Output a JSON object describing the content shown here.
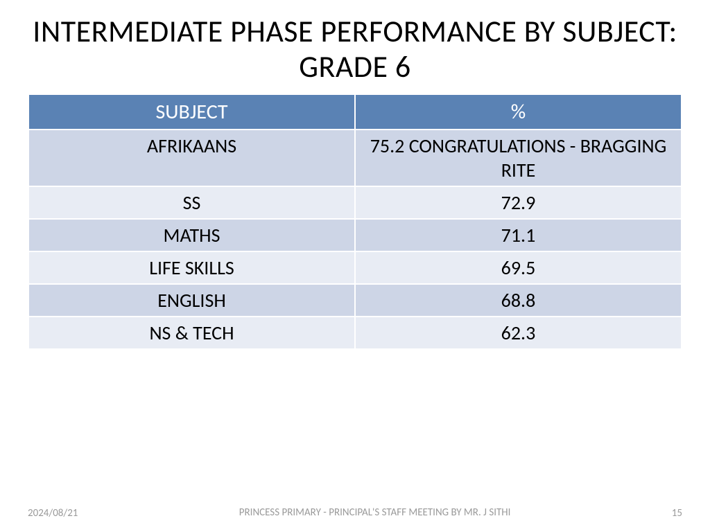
{
  "title": "INTERMEDIATE PHASE PERFORMANCE BY  SUBJECT:  GRADE  6",
  "table": {
    "header_bg": "#5a82b4",
    "header_color": "#ffffff",
    "row_colors": [
      "#cdd5e6",
      "#e8ecf4"
    ],
    "border_color": "#ffffff",
    "columns": [
      "SUBJECT",
      "%"
    ],
    "column_widths": [
      "50%",
      "50%"
    ],
    "header_fontsize": 30,
    "cell_fontsize": 28,
    "rows": [
      [
        "AFRIKAANS",
        "75.2  CONGRATULATIONS - BRAGGING  RITE"
      ],
      [
        "SS",
        "72.9"
      ],
      [
        "MATHS",
        "71.1"
      ],
      [
        "LIFE  SKILLS",
        "69.5"
      ],
      [
        "ENGLISH",
        "68.8"
      ],
      [
        "NS  &  TECH",
        "62.3"
      ]
    ]
  },
  "footer": {
    "date": "2024/08/21",
    "center": "PRINCESS PRIMARY - PRINCIPAL'S STAFF MEETING BY MR. J SITHI",
    "page": "15",
    "color": "#9a9a9a",
    "fontsize": 15
  },
  "background_color": "#ffffff"
}
